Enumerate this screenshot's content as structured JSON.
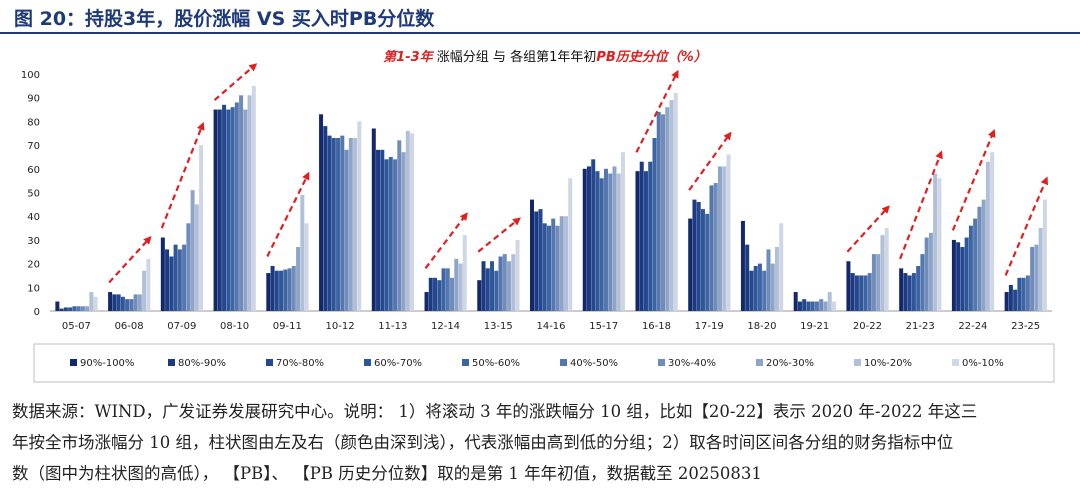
{
  "figure_title": "图 20：持股3年，股价涨幅 VS 买入时PB分位数",
  "colors": {
    "title": "#1f3a78",
    "arrow": "#e02020",
    "series": [
      "#13286b",
      "#1c3a82",
      "#24478f",
      "#2f5699",
      "#3e65a3",
      "#5577af",
      "#708cbb",
      "#8fa5c8",
      "#b1c0d8",
      "#cfd7e6"
    ]
  },
  "chart_data": {
    "type": "bar",
    "title_parts": {
      "p1": "第1-3年",
      "p2": " 涨幅分组  与  各组第1年年初",
      "p3": "PB历史分位（%）"
    },
    "ylim": [
      0,
      100
    ],
    "yticks": [
      0,
      10,
      20,
      30,
      40,
      50,
      60,
      70,
      80,
      90,
      100
    ],
    "xlabel": "",
    "ylabel": "",
    "categories": [
      "05-07",
      "06-08",
      "07-09",
      "08-10",
      "09-11",
      "10-12",
      "11-13",
      "12-14",
      "13-15",
      "14-16",
      "15-17",
      "16-18",
      "17-19",
      "18-20",
      "19-21",
      "20-22",
      "21-23",
      "22-24",
      "23-25"
    ],
    "series": [
      {
        "name": "90%-100%",
        "values": [
          4,
          8,
          31,
          85,
          16,
          83,
          77,
          8,
          13,
          47,
          60,
          59,
          39,
          38,
          8,
          21,
          18,
          30,
          8
        ]
      },
      {
        "name": "80%-90%",
        "values": [
          1,
          7,
          26,
          85,
          19,
          78,
          68,
          14,
          21,
          42,
          61,
          63,
          47,
          28,
          4,
          16,
          16,
          29,
          11
        ]
      },
      {
        "name": "70%-80%",
        "values": [
          1.5,
          7,
          23,
          87,
          17,
          74,
          68,
          14,
          18,
          43,
          64,
          59,
          46,
          17,
          5,
          15,
          15,
          27,
          9
        ]
      },
      {
        "name": "60%-70%",
        "values": [
          1.5,
          6,
          28,
          85,
          17,
          73,
          64,
          13,
          21,
          37,
          59,
          63,
          43,
          19,
          4,
          15,
          16,
          31,
          14
        ]
      },
      {
        "name": "50%-60%",
        "values": [
          2,
          5,
          26,
          86,
          17.5,
          73,
          65,
          18,
          17,
          36,
          56,
          73,
          41,
          20,
          4,
          15,
          19,
          36,
          14
        ]
      },
      {
        "name": "40%-50%",
        "values": [
          2,
          5,
          28,
          88,
          18,
          74,
          64,
          18,
          23,
          39,
          60,
          84,
          53,
          17,
          4,
          16,
          24,
          39,
          15
        ]
      },
      {
        "name": "30%-40%",
        "values": [
          2,
          7,
          37,
          91,
          19,
          68,
          72,
          14,
          24,
          36,
          58,
          83,
          54,
          26,
          5,
          24,
          31,
          44,
          27
        ]
      },
      {
        "name": "20%-30%",
        "values": [
          2,
          7,
          51,
          85,
          27,
          73,
          67,
          22,
          21,
          40,
          61,
          86,
          61,
          20,
          4,
          24,
          33,
          47,
          28
        ]
      },
      {
        "name": "10%-20%",
        "values": [
          8,
          17,
          45,
          91,
          49,
          73,
          76,
          20,
          24,
          40,
          58,
          89,
          61,
          27,
          8,
          32,
          58,
          63,
          35
        ]
      },
      {
        "name": "0%-10%",
        "values": [
          6,
          22,
          70,
          95,
          37,
          80,
          75,
          32,
          30,
          56,
          67,
          92,
          66,
          37,
          4,
          35,
          56,
          67,
          47
        ]
      }
    ],
    "legend_position": "bottom"
  },
  "source_lines": [
    "数据来源：WIND，广发证券发展研究中心。说明： 1）将滚动 3 年的涨跌幅分 10 组，比如【20-22】表示 2020 年-2022 年这三",
    "年按全市场涨幅分 10 组，柱状图由左及右（颜色由深到浅），代表涨幅由高到低的分组；2）取各时间区间各分组的财务指标中位",
    "数（图中为柱状图的高低），  【PB】、 【PB 历史分位数】取的是第 1 年年初值，数据截至 20250831"
  ]
}
